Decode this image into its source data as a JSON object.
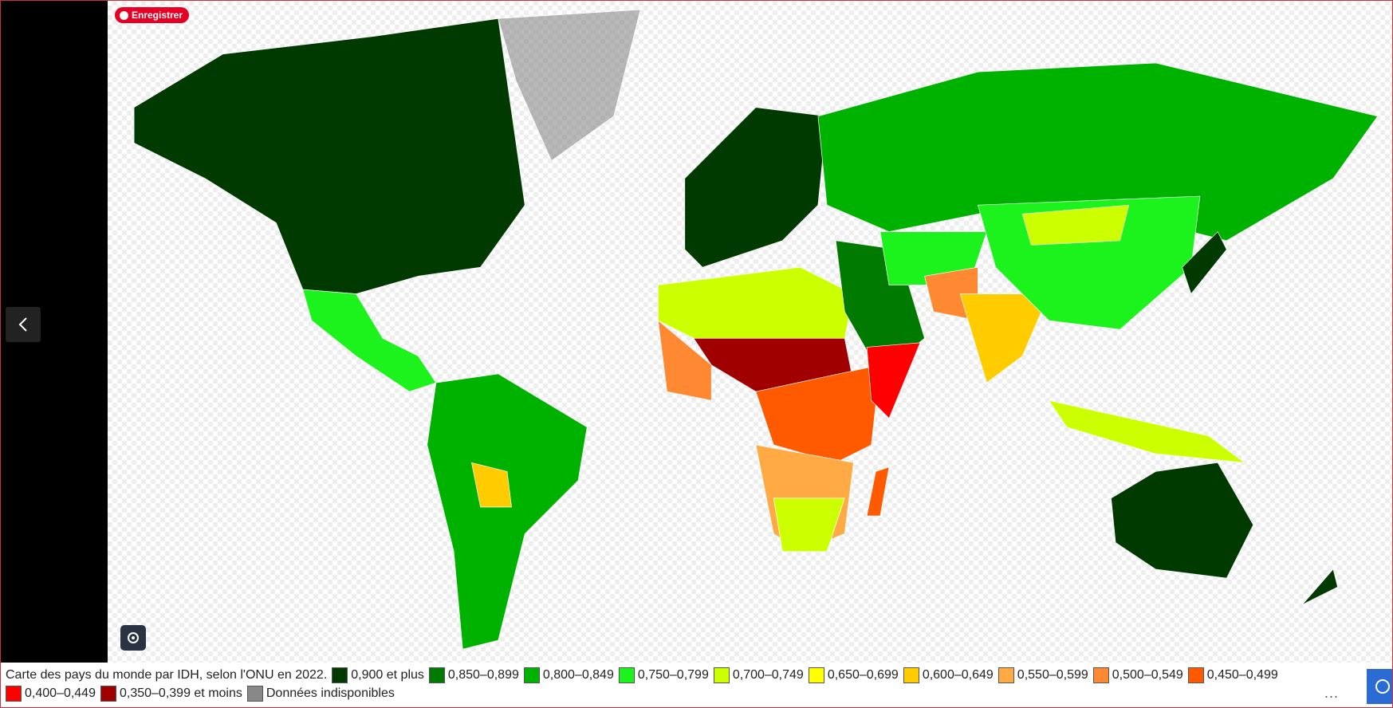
{
  "save_button": "Enregistrer",
  "caption": "Carte des pays du monde par IDH, selon l'ONU en 2022.",
  "legend": [
    {
      "label": "0,900 et plus",
      "color": "#013a01"
    },
    {
      "label": "0,850–0,899",
      "color": "#007a00"
    },
    {
      "label": "0,800–0,849",
      "color": "#00b200"
    },
    {
      "label": "0,750–0,799",
      "color": "#1cf21c"
    },
    {
      "label": "0,700–0,749",
      "color": "#ccff00"
    },
    {
      "label": "0,650–0,699",
      "color": "#ffff00"
    },
    {
      "label": "0,600–0,649",
      "color": "#ffcc00"
    },
    {
      "label": "0,550–0,599",
      "color": "#ffaa44"
    },
    {
      "label": "0,500–0,549",
      "color": "#ff8833"
    },
    {
      "label": "0,450–0,499",
      "color": "#ff5a00"
    },
    {
      "label": "0,400–0,449",
      "color": "#ff0000"
    },
    {
      "label": "0,350–0,399 et moins",
      "color": "#a00000"
    },
    {
      "label": "Données indisponibles",
      "color": "#888888"
    }
  ],
  "more": "..."
}
